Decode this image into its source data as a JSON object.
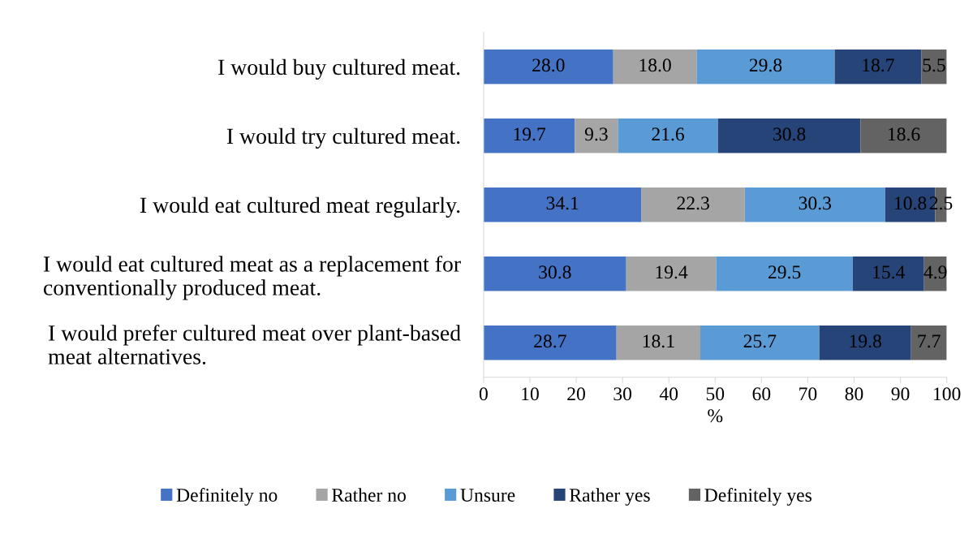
{
  "chart_data": {
    "type": "bar",
    "orientation": "horizontal",
    "stacked": true,
    "xlabel": "%",
    "categories": [
      "I would buy cultured meat.",
      "I would try cultured meat.",
      "I would eat cultured meat regularly.",
      "I would eat cultured meat as a replacement for\nconventionally produced meat.",
      "I would prefer cultured meat over plant-based\nmeat alternatives."
    ],
    "series": [
      {
        "name": "Definitely no",
        "color": "#4472c4",
        "values": [
          28.0,
          19.7,
          34.1,
          30.8,
          28.7
        ],
        "value_labels": [
          "28.0",
          "19.7",
          "34.1",
          "30.8",
          "28.7"
        ]
      },
      {
        "name": "Rather no",
        "color": "#a5a5a5",
        "values": [
          18.0,
          9.3,
          22.3,
          19.4,
          18.1
        ],
        "value_labels": [
          "18.0",
          "9.3",
          "22.3",
          "19.4",
          "18.1"
        ]
      },
      {
        "name": "Unsure",
        "color": "#5b9bd5",
        "values": [
          29.8,
          21.6,
          30.3,
          29.5,
          25.7
        ],
        "value_labels": [
          "29.8",
          "21.6",
          "30.3",
          "29.5",
          "25.7"
        ]
      },
      {
        "name": "Rather yes",
        "color": "#264478",
        "values": [
          18.7,
          30.8,
          10.8,
          15.4,
          19.8
        ],
        "value_labels": [
          "18.7",
          "30.8",
          "10.8",
          "15.4",
          "19.8"
        ]
      },
      {
        "name": "Definitely yes",
        "color": "#636363",
        "values": [
          5.5,
          18.6,
          2.5,
          4.9,
          7.7
        ],
        "value_labels": [
          "5.5",
          "18.6",
          "2.5",
          "4.9",
          "7.7"
        ]
      }
    ],
    "xlim": [
      0,
      100
    ],
    "xticks": [
      0,
      10,
      20,
      30,
      40,
      50,
      60,
      70,
      80,
      90,
      100
    ],
    "grid": false,
    "legend": "bottom"
  }
}
